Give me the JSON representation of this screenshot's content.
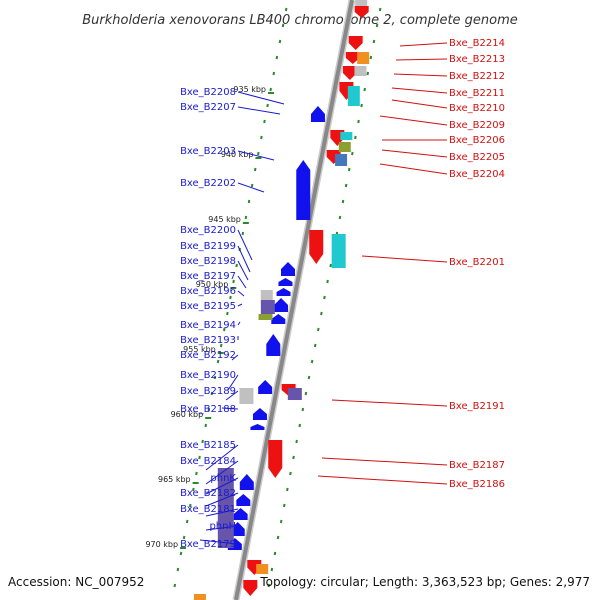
{
  "title": "Burkholderia xenovorans LB400 chromosome 2, complete genome",
  "footer": {
    "accession": "Accession: NC_007952",
    "stats": "Topology: circular; Length: 3,363,523 bp; Genes: 2,977"
  },
  "colors": {
    "forward": "#ee1111",
    "reverse": "#1111ee",
    "backbone": "#888888",
    "ticks": "#2a8a2a",
    "orange": "#f09020",
    "cyan": "#20c8d0",
    "olive": "#8aa030",
    "steel": "#4477bb",
    "grey": "#c0c0c0",
    "purple": "#6655aa"
  },
  "scale_ticks": [
    {
      "kbp": 935,
      "label": "935 kbp"
    },
    {
      "kbp": 940,
      "label": "940 kbp"
    },
    {
      "kbp": 945,
      "label": "945 kbp"
    },
    {
      "kbp": 950,
      "label": "950 kbp"
    },
    {
      "kbp": 955,
      "label": "955 kbp"
    },
    {
      "kbp": 960,
      "label": "960 kbp"
    },
    {
      "kbp": 965,
      "label": "965 kbp"
    },
    {
      "kbp": 970,
      "label": "970 kbp"
    }
  ],
  "right_labels": [
    "Bxe_B2214",
    "Bxe_B2213",
    "Bxe_B2212",
    "Bxe_B2211",
    "Bxe_B2210",
    "Bxe_B2209",
    "Bxe_B2206",
    "Bxe_B2205",
    "Bxe_B2204",
    "Bxe_B2201",
    "Bxe_B2191",
    "Bxe_B2187",
    "Bxe_B2186"
  ],
  "left_labels": [
    "Bxe_B2208",
    "Bxe_B2207",
    "Bxe_B2203",
    "Bxe_B2202",
    "Bxe_B2200",
    "Bxe_B2199",
    "Bxe_B2198",
    "Bxe_B2197",
    "Bxe_B2196",
    "Bxe_B2195",
    "Bxe_B2194",
    "Bxe_B2193",
    "Bxe_B2192",
    "Bxe_B2190",
    "Bxe_B2189",
    "Bxe_B2188",
    "Bxe_B2185",
    "Bxe_B2184",
    "phnK",
    "Bxe_B2182",
    "Bxe_B2181",
    "phnH",
    "Bxe_B2179"
  ]
}
